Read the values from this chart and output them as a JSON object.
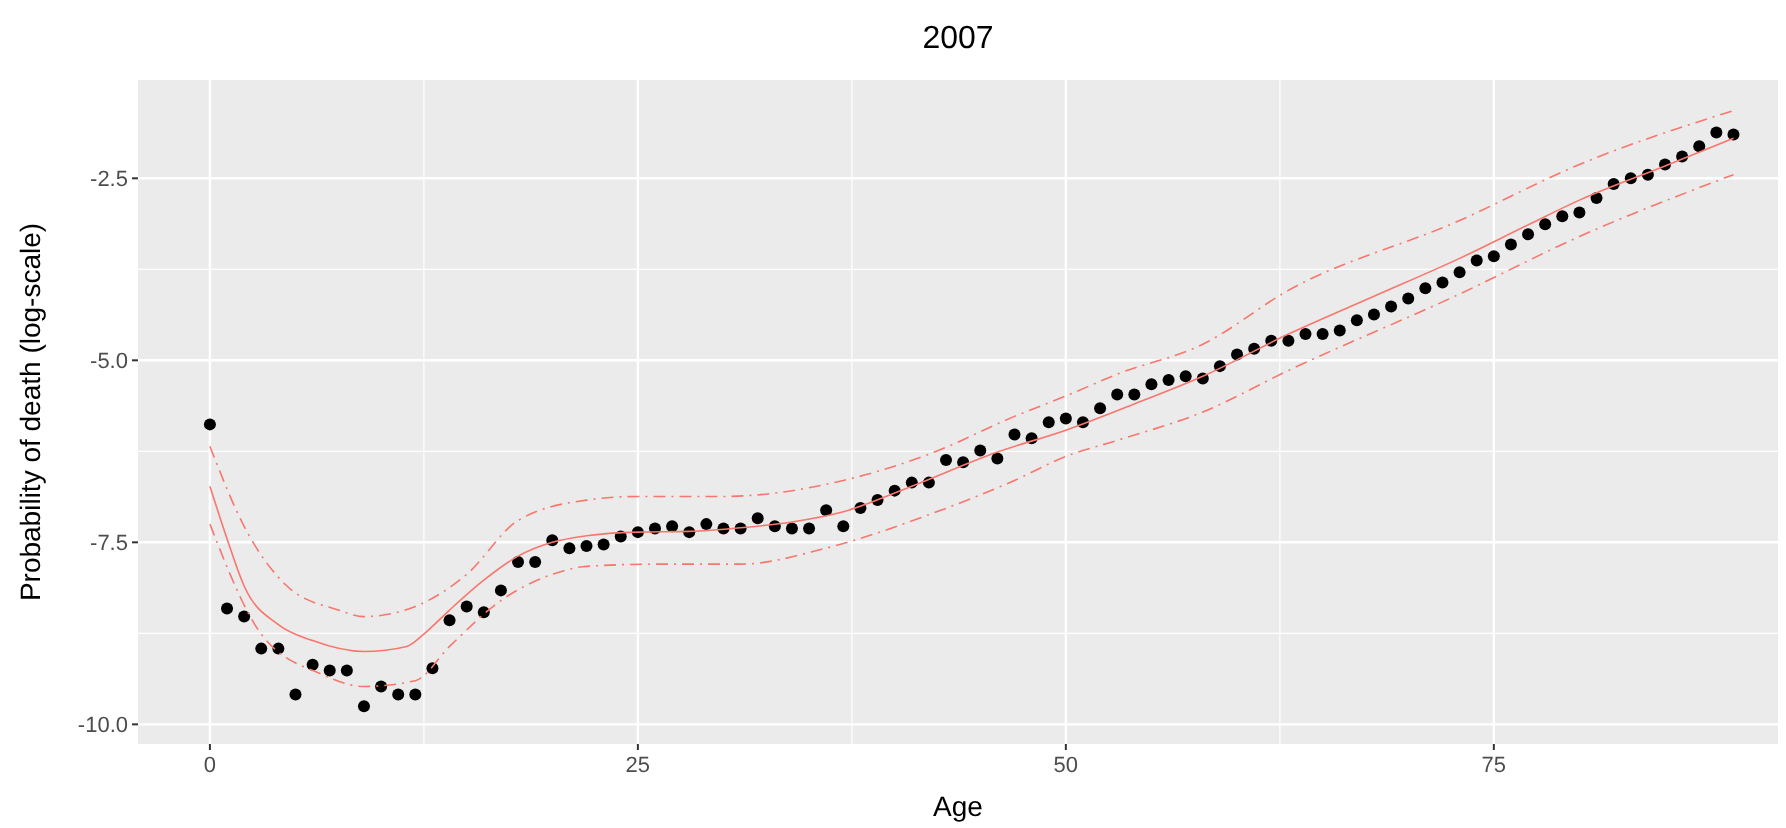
{
  "chart_data": {
    "type": "scatter",
    "title": "2007",
    "xlabel": "Age",
    "ylabel": "Probability of death (log-scale)",
    "xlim": [
      -4.2,
      91.6
    ],
    "ylim": [
      -10.27,
      -1.15
    ],
    "xticks": [
      0,
      25,
      50,
      75
    ],
    "yticks": [
      {
        "value": -10,
        "label": "-10.0"
      },
      {
        "value": -7.5,
        "label": "-7.5"
      },
      {
        "value": -5,
        "label": "-5.0"
      },
      {
        "value": -2.5,
        "label": "-2.5"
      }
    ],
    "grid": true,
    "series": [
      {
        "color": "#000000",
        "marker": "circle",
        "x": [
          0,
          1,
          2,
          3,
          4,
          5,
          6,
          7,
          8,
          9,
          10,
          11,
          12,
          13,
          14,
          15,
          16,
          17,
          18,
          19,
          20,
          21,
          22,
          23,
          24,
          25,
          26,
          27,
          28,
          29,
          30,
          31,
          32,
          33,
          34,
          35,
          36,
          37,
          38,
          39,
          40,
          41,
          42,
          43,
          44,
          45,
          46,
          47,
          48,
          49,
          50,
          51,
          52,
          53,
          54,
          55,
          56,
          57,
          58,
          59,
          60,
          61,
          62,
          63,
          64,
          65,
          66,
          67,
          68,
          69,
          70,
          71,
          72,
          73,
          74,
          75,
          76,
          77,
          78,
          79,
          80,
          81,
          82,
          83,
          84,
          85,
          86,
          87,
          88,
          89
        ],
        "values": [
          -5.88,
          -8.41,
          -8.52,
          -8.96,
          -8.96,
          -9.59,
          -9.18,
          -9.26,
          -9.26,
          -9.75,
          -9.48,
          -9.59,
          -9.59,
          -9.23,
          -8.57,
          -8.38,
          -8.46,
          -8.16,
          -7.77,
          -7.77,
          -7.47,
          -7.58,
          -7.55,
          -7.53,
          -7.42,
          -7.36,
          -7.31,
          -7.28,
          -7.36,
          -7.25,
          -7.31,
          -7.31,
          -7.17,
          -7.28,
          -7.31,
          -7.31,
          -7.06,
          -7.28,
          -7.03,
          -6.92,
          -6.79,
          -6.68,
          -6.68,
          -6.37,
          -6.4,
          -6.24,
          -6.35,
          -6.02,
          -6.07,
          -5.85,
          -5.8,
          -5.85,
          -5.66,
          -5.47,
          -5.47,
          -5.33,
          -5.27,
          -5.22,
          -5.25,
          -5.08,
          -4.92,
          -4.84,
          -4.73,
          -4.73,
          -4.64,
          -4.64,
          -4.59,
          -4.45,
          -4.37,
          -4.26,
          -4.15,
          -4.01,
          -3.93,
          -3.79,
          -3.63,
          -3.57,
          -3.41,
          -3.27,
          -3.13,
          -3.02,
          -2.97,
          -2.77,
          -2.58,
          -2.5,
          -2.45,
          -2.31,
          -2.2,
          -2.06,
          -1.87,
          -1.9
        ]
      },
      {
        "type": "line",
        "color": "#f8766d",
        "line_style": "solid",
        "x": [
          0,
          1,
          2,
          4,
          6,
          9,
          11.5,
          12.5,
          14,
          16,
          18,
          20,
          22,
          25,
          28,
          31,
          34,
          37,
          41,
          46,
          50,
          54,
          58,
          63,
          68,
          73,
          77,
          80,
          85,
          89
        ],
        "values": [
          -6.73,
          -7.45,
          -8.1,
          -8.63,
          -8.85,
          -9.0,
          -8.93,
          -8.76,
          -8.43,
          -8.02,
          -7.69,
          -7.5,
          -7.41,
          -7.36,
          -7.35,
          -7.3,
          -7.22,
          -7.08,
          -6.73,
          -6.26,
          -5.96,
          -5.6,
          -5.22,
          -4.64,
          -4.12,
          -3.6,
          -3.14,
          -2.8,
          -2.33,
          -1.95
        ]
      },
      {
        "type": "line",
        "color": "#f8766d",
        "line_style": "dashed",
        "x": [
          0,
          2,
          4.5,
          7.5,
          9,
          12,
          15,
          18,
          22,
          25,
          30,
          37,
          42,
          47,
          50,
          53,
          58,
          63,
          73,
          80,
          89
        ],
        "values": [
          -6.18,
          -7.28,
          -8.1,
          -8.43,
          -8.52,
          -8.38,
          -7.94,
          -7.2,
          -6.92,
          -6.87,
          -6.87,
          -6.65,
          -6.29,
          -5.77,
          -5.49,
          -5.19,
          -4.78,
          -4.04,
          -3.08,
          -2.31,
          -1.57
        ]
      },
      {
        "type": "line",
        "color": "#f8766d",
        "line_style": "dashed",
        "x": [
          0,
          3,
          6.5,
          9,
          12,
          14,
          17,
          20,
          22,
          26,
          31,
          36,
          42,
          47,
          50,
          53,
          58,
          63,
          73,
          80,
          89
        ],
        "values": [
          -7.25,
          -8.76,
          -9.31,
          -9.48,
          -9.4,
          -8.93,
          -8.3,
          -7.94,
          -7.83,
          -7.8,
          -7.8,
          -7.58,
          -7.12,
          -6.65,
          -6.32,
          -6.1,
          -5.71,
          -5.14,
          -4.09,
          -3.3,
          -2.45
        ]
      }
    ]
  }
}
